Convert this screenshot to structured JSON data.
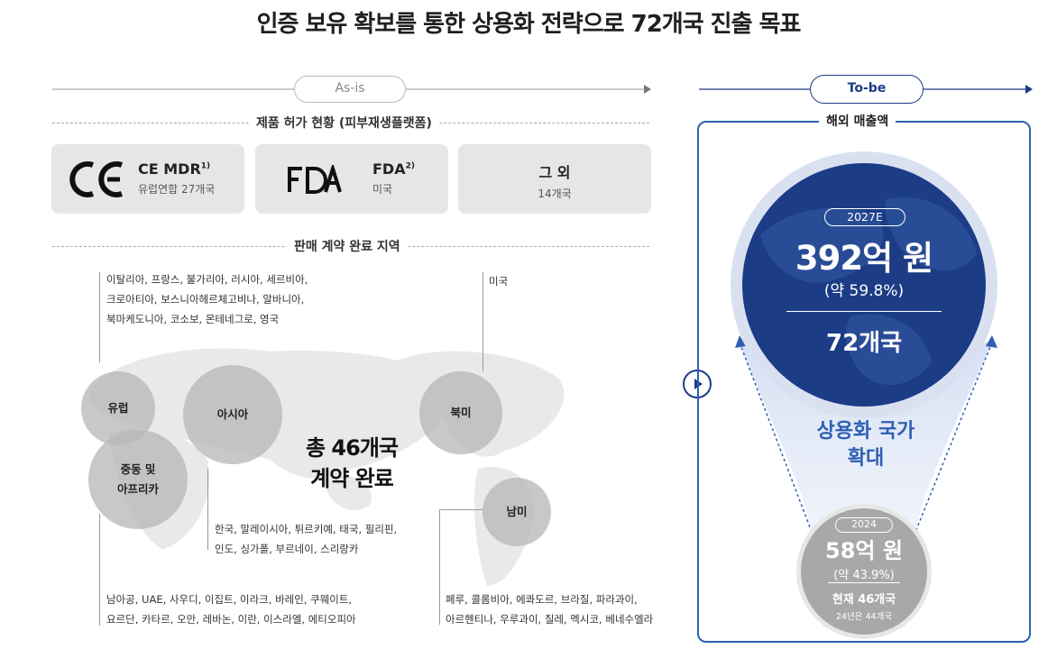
{
  "title": "인증 보유 확보를 통한 상용화 전략으로 72개국 진출 목표",
  "asis": {
    "label": "As-is",
    "permits_title": "제품 허가 현황 (피부재생플랫폼)",
    "cards": [
      {
        "logo": "CE",
        "name": "CE MDR",
        "note": "1)",
        "sub": "유럽연합 27개국"
      },
      {
        "logo": "FDA",
        "name": "FDA",
        "note": "2)",
        "sub": "미국"
      },
      {
        "name": "그 외",
        "sub": "14개국"
      }
    ],
    "contracts_title": "판매 계약 완료 지역",
    "regions": {
      "europe": "유럽",
      "asia": "아시아",
      "mea_line1": "중동 및",
      "mea_line2": "아프리카",
      "north_america": "북미",
      "south_america": "남미"
    },
    "total_line1": "총 46개국",
    "total_line2": "계약 완료",
    "country_lists": {
      "europe": [
        "이탈리아, 프랑스, 불가리아, 러시아, 세르비아,",
        "크로아티아, 보스니아헤르체고비나, 알바니아,",
        "북마케도니아, 코소보, 몬테네그로, 영국"
      ],
      "north_america": [
        "미국"
      ],
      "asia": [
        "한국, 말레이시아, 튀르키예, 태국, 필리핀,",
        "인도, 싱가폴, 부르네이, 스리랑카"
      ],
      "mea": [
        "남아공, UAE, 사우디, 이집트, 이라크, 바레인, 쿠웨이트,",
        "요르단, 카타르, 오만, 레바논, 이란, 이스라엘, 에티오피아"
      ],
      "south_america": [
        "페루, 콜롬비아, 에콰도르, 브라질, 파라과이,",
        "아르헨티나, 우루과이, 칠레, 멕시코, 베네수엘라"
      ]
    }
  },
  "tobe": {
    "label": "To-be",
    "section_title": "해외 매출액",
    "target": {
      "year": "2027E",
      "amount": "392억 원",
      "share": "(약 59.8%)",
      "countries": "72개국"
    },
    "expand_line1": "상용화 국가",
    "expand_line2": "확대",
    "current": {
      "year": "2024",
      "amount": "58억 원",
      "share": "(약 43.9%)",
      "countries": "현재 46개국",
      "note": "24년은 44개국"
    }
  },
  "colors": {
    "navy": "#1c3c86",
    "accent": "#2f5fb3",
    "grey_card": "#e6e6e6",
    "bubble": "#cfcfcf",
    "map": "#e9e9e9"
  }
}
